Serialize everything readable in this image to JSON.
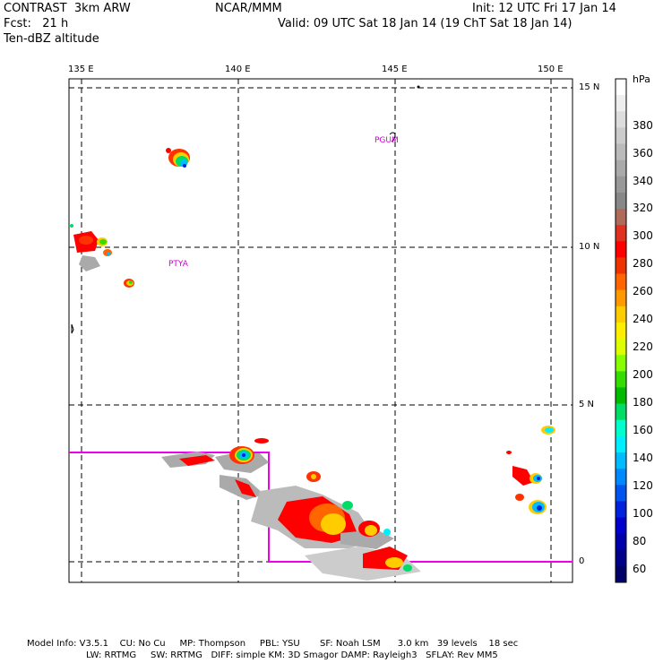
{
  "header": {
    "model": "CONTRAST  3km ARW",
    "org": "NCAR/MMM",
    "init": "Init: 12 UTC Fri 17 Jan 14",
    "fcst": "Fcst:   21 h",
    "valid": "Valid: 09 UTC Sat 18 Jan 14 (19 ChT Sat 18 Jan 14)",
    "field": "Ten-dBZ altitude"
  },
  "axes": {
    "lon_labels": [
      "135 E",
      "140 E",
      "145 E",
      "150 E"
    ],
    "lat_labels": [
      "15 N",
      "10 N",
      "5 N",
      "0"
    ]
  },
  "stations": [
    "PGUM",
    "PTYA"
  ],
  "colorbar": {
    "unit": "hPa",
    "labels": [
      "380",
      "360",
      "340",
      "320",
      "300",
      "280",
      "260",
      "240",
      "220",
      "200",
      "180",
      "160",
      "140",
      "120",
      "100",
      "80",
      "60"
    ],
    "colors": [
      "#ffffff",
      "#eeeeee",
      "#dddddd",
      "#cccccc",
      "#bbbbbb",
      "#aaaaaa",
      "#999999",
      "#888888",
      "#b06a5a",
      "#e03020",
      "#ff0000",
      "#ee3300",
      "#ff6600",
      "#ff9900",
      "#ffcc00",
      "#ffee00",
      "#ddff00",
      "#88ff00",
      "#33dd00",
      "#00bb00",
      "#00dd66",
      "#00ffcc",
      "#00eeff",
      "#00bbff",
      "#0088ff",
      "#0055ee",
      "#0022dd",
      "#0000cc",
      "#0000aa",
      "#000088",
      "#000066"
    ]
  },
  "footer": {
    "line1": "Model Info: V3.5.1    CU: No Cu     MP: Thompson     PBL: YSU       SF: Noah LSM      3.0 km   39 levels    18 sec",
    "line2": "LW: RRTMG     SW: RRTMG   DIFF: simple KM: 3D Smagor DAMP: Rayleigh3   SFLAY: Rev MM5"
  }
}
